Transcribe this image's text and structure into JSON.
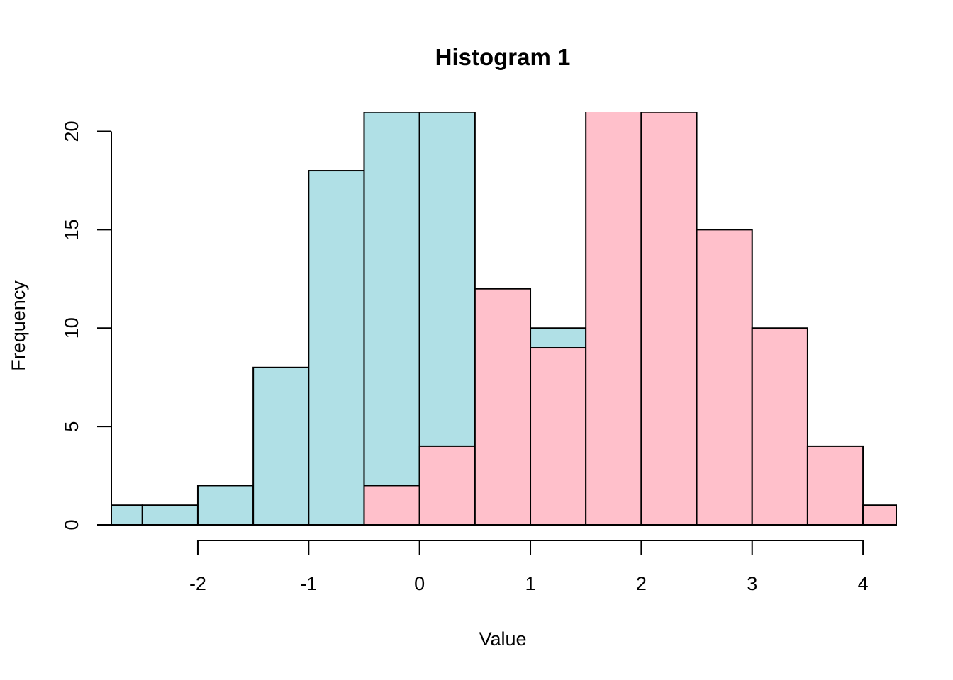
{
  "chart_data": {
    "type": "bar",
    "title": "Histogram 1",
    "xlabel": "Value",
    "ylabel": "Frequency",
    "xlim": [
      -2.78,
      4.3
    ],
    "ylim": [
      0,
      20.99
    ],
    "x_ticks": [
      -2,
      -1,
      0,
      1,
      2,
      3,
      4
    ],
    "x_tick_labels": [
      "-2",
      "-1",
      "0",
      "1",
      "2",
      "3",
      "4"
    ],
    "y_ticks": [
      0,
      5,
      10,
      15,
      20
    ],
    "y_tick_labels": [
      "0",
      "5",
      "10",
      "15",
      "20"
    ],
    "grid": false,
    "legend": "none",
    "series": [
      {
        "color": "#b0e0e6",
        "bins": [
          {
            "x0": -2.78,
            "x1": -2.5,
            "count": 1
          },
          {
            "x0": -2.5,
            "x1": -2.0,
            "count": 1
          },
          {
            "x0": -2.0,
            "x1": -1.5,
            "count": 2
          },
          {
            "x0": -1.5,
            "x1": -1.0,
            "count": 8
          },
          {
            "x0": -1.0,
            "x1": -0.5,
            "count": 18
          },
          {
            "x0": -0.5,
            "x1": 0.0,
            "count": 21
          },
          {
            "x0": 0.0,
            "x1": 0.5,
            "count": 21
          },
          {
            "x0": 1.0,
            "x1": 1.5,
            "count": 10
          }
        ]
      },
      {
        "color": "#ffc0cb",
        "bins": [
          {
            "x0": -0.5,
            "x1": 0.0,
            "count": 2
          },
          {
            "x0": 0.0,
            "x1": 0.5,
            "count": 4
          },
          {
            "x0": 0.5,
            "x1": 1.0,
            "count": 12
          },
          {
            "x0": 1.0,
            "x1": 1.5,
            "count": 9
          },
          {
            "x0": 1.5,
            "x1": 2.0,
            "count": 22
          },
          {
            "x0": 2.0,
            "x1": 2.5,
            "count": 21
          },
          {
            "x0": 2.5,
            "x1": 3.0,
            "count": 15
          },
          {
            "x0": 3.0,
            "x1": 3.5,
            "count": 10
          },
          {
            "x0": 3.5,
            "x1": 4.0,
            "count": 4
          },
          {
            "x0": 4.0,
            "x1": 4.3,
            "count": 1
          }
        ]
      }
    ]
  }
}
